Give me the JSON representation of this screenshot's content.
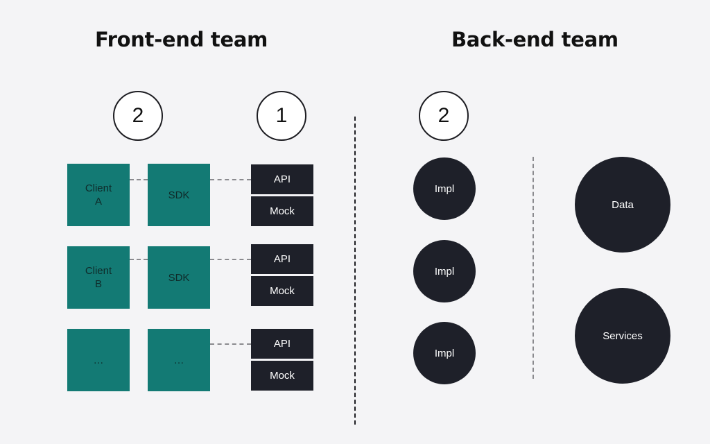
{
  "titles": {
    "frontend": "Front-end team",
    "backend": "Back-end team"
  },
  "steps": {
    "frontend_clients": "2",
    "frontend_api": "1",
    "backend_impl": "2"
  },
  "frontend": {
    "rows": [
      {
        "client": "Client\nA",
        "sdk": "SDK",
        "api": "API",
        "mock": "Mock"
      },
      {
        "client": "Client\nB",
        "sdk": "SDK",
        "api": "API",
        "mock": "Mock"
      },
      {
        "client": "…",
        "sdk": "…",
        "api": "API",
        "mock": "Mock"
      }
    ]
  },
  "backend": {
    "impls": [
      "Impl",
      "Impl",
      "Impl"
    ],
    "data": "Data",
    "services": "Services"
  },
  "colors": {
    "background": "#f4f4f6",
    "teal": "#137a74",
    "dark": "#1e2029"
  }
}
